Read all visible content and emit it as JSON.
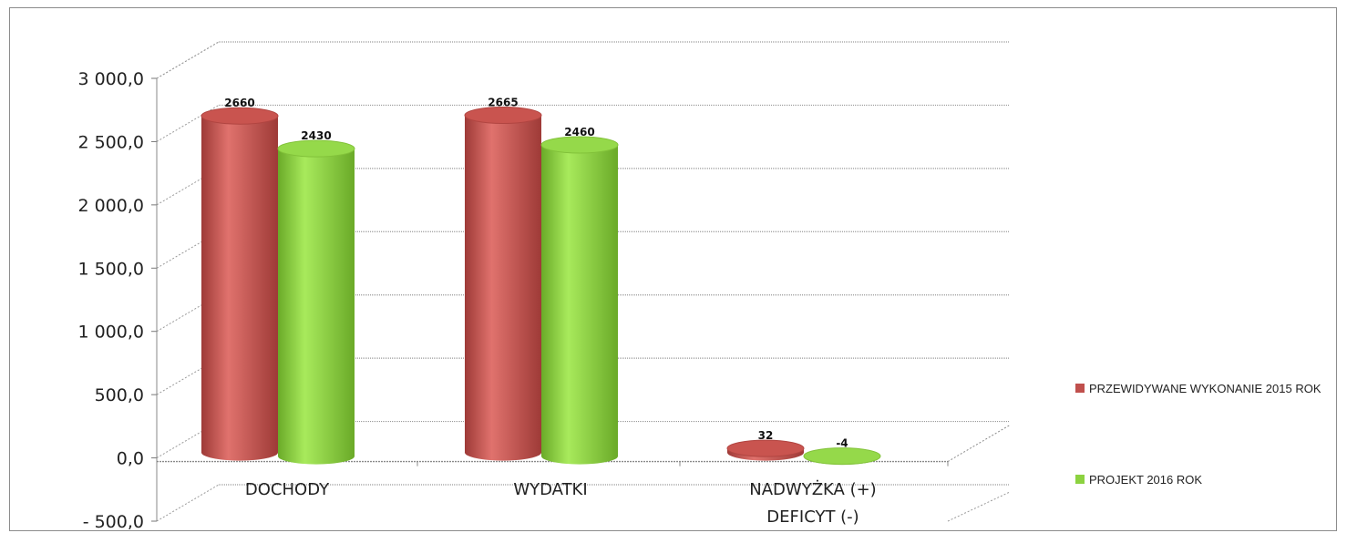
{
  "chart_data": {
    "type": "bar",
    "style": "3d-cylinder",
    "categories": [
      "DOCHODY",
      "WYDATKI",
      "NADWYŻKA (+)\nDEFICYT (-)"
    ],
    "series": [
      {
        "name": "PRZEWIDYWANE WYKONANIE 2015 ROK",
        "color": "#c0504d",
        "values": [
          2660,
          2665,
          32
        ]
      },
      {
        "name": "PROJEKT 2016 ROK",
        "color": "#8cd240",
        "values": [
          2430,
          2460,
          -4
        ]
      }
    ],
    "ylim": [
      -500,
      3000
    ],
    "yticks": [
      -500,
      0,
      500,
      1000,
      1500,
      2000,
      2500,
      3000
    ],
    "ytick_labels": [
      "- 500,0",
      "0,0",
      "500,0",
      "1 000,0",
      "1 500,0",
      "2 000,0",
      "2 500,0",
      "3 000,0"
    ],
    "grid": true,
    "legend_position": "right",
    "title": "",
    "xlabel": "",
    "ylabel": ""
  }
}
